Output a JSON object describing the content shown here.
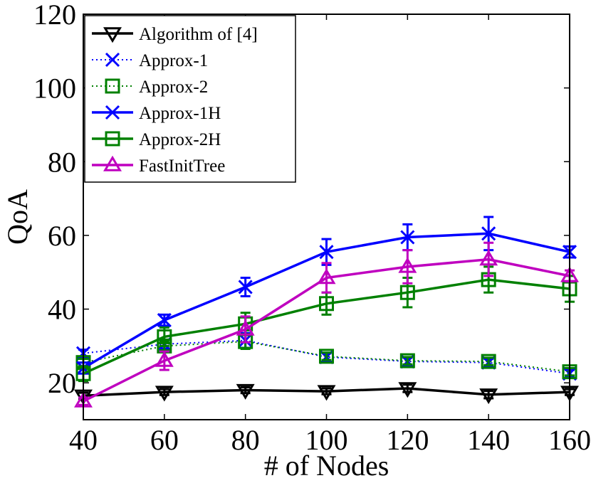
{
  "chart_data": {
    "type": "line",
    "xlabel": "# of Nodes",
    "ylabel": "QoA",
    "x": [
      40,
      60,
      80,
      100,
      120,
      140,
      160
    ],
    "xlim": [
      40,
      160
    ],
    "ylim": [
      10,
      120
    ],
    "xticks": [
      "40",
      "60",
      "80",
      "100",
      "120",
      "140",
      "160"
    ],
    "yticks": [
      "20",
      "40",
      "60",
      "80",
      "100",
      "120"
    ],
    "grid": false,
    "legend_position": "top-left",
    "series": [
      {
        "name": "Algorithm of [4]",
        "color": "#000000",
        "style": "solid",
        "marker": "triangle-down",
        "values": [
          16.5,
          17.5,
          18.0,
          17.7,
          18.5,
          16.8,
          17.5
        ],
        "errors": [
          0.8,
          0.8,
          0.8,
          0.8,
          1.0,
          1.0,
          0.8
        ]
      },
      {
        "name": "Approx-1",
        "color": "#0000ff",
        "style": "dotted",
        "marker": "x",
        "values": [
          28.0,
          30.5,
          31.5,
          27.0,
          25.8,
          25.5,
          22.5
        ],
        "errors": [
          1.0,
          1.2,
          2.0,
          1.0,
          1.0,
          1.0,
          1.0
        ]
      },
      {
        "name": "Approx-2",
        "color": "#008000",
        "style": "dotted",
        "marker": "square",
        "values": [
          25.5,
          30.0,
          31.2,
          27.2,
          26.0,
          25.8,
          23.0
        ],
        "errors": [
          1.0,
          1.2,
          2.0,
          1.0,
          1.0,
          1.0,
          1.0
        ]
      },
      {
        "name": "Approx-1H",
        "color": "#0000ff",
        "style": "solid",
        "marker": "x",
        "values": [
          24.0,
          37.0,
          46.0,
          55.5,
          59.5,
          60.5,
          55.5
        ],
        "errors": [
          1.5,
          1.5,
          2.5,
          3.5,
          3.5,
          4.5,
          1.5
        ]
      },
      {
        "name": "Approx-2H",
        "color": "#008000",
        "style": "solid",
        "marker": "square",
        "values": [
          22.5,
          32.5,
          36.0,
          41.5,
          44.5,
          48.0,
          45.5
        ],
        "errors": [
          2.0,
          2.5,
          3.0,
          3.0,
          4.0,
          3.5,
          3.5
        ]
      },
      {
        "name": "FastInitTree",
        "color": "#bf00bf",
        "style": "solid",
        "marker": "triangle-up",
        "values": [
          15.0,
          26.0,
          34.5,
          48.5,
          51.5,
          53.5,
          49.0
        ],
        "errors": [
          1.0,
          2.5,
          3.5,
          4.0,
          4.5,
          4.5,
          1.5
        ]
      }
    ]
  }
}
